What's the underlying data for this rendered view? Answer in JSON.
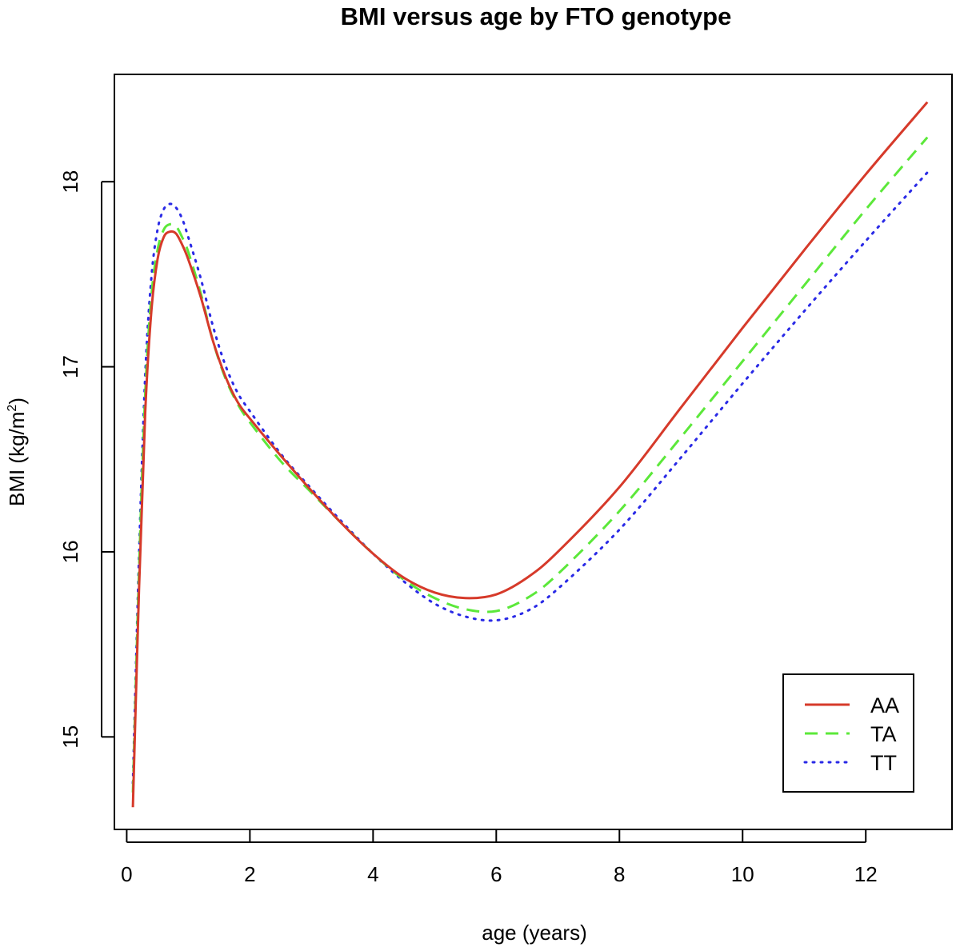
{
  "chart_data": {
    "type": "line",
    "title": "BMI versus age by FTO genotype",
    "xlabel": "age (years)",
    "ylabel": "BMI  (kg/m",
    "ylabel_superscript": "2",
    "ylabel_suffix": ")",
    "xlim": [
      -0.2,
      13.4
    ],
    "ylim": [
      14.5,
      18.58
    ],
    "xticks": [
      0,
      2,
      4,
      6,
      8,
      10,
      12
    ],
    "yticks": [
      15,
      16,
      17,
      18
    ],
    "grid": false,
    "legend_position": "bottom-right",
    "series": [
      {
        "name": "AA",
        "color": "#d63a2a",
        "dash": "solid",
        "x": [
          0.1,
          0.2,
          0.3,
          0.4,
          0.5,
          0.6,
          0.7,
          0.8,
          0.9,
          1.0,
          1.2,
          1.4,
          1.6,
          1.8,
          2.0,
          2.5,
          3.0,
          3.5,
          4.0,
          4.5,
          5.0,
          5.5,
          6.0,
          6.5,
          7.0,
          8.0,
          9.0,
          10.0,
          11.0,
          12.0,
          13.0
        ],
        "y": [
          14.62,
          15.8,
          16.75,
          17.3,
          17.58,
          17.7,
          17.73,
          17.72,
          17.66,
          17.58,
          17.38,
          17.14,
          16.95,
          16.81,
          16.72,
          16.52,
          16.33,
          16.15,
          15.99,
          15.86,
          15.78,
          15.75,
          15.77,
          15.86,
          16.0,
          16.35,
          16.78,
          17.21,
          17.63,
          18.04,
          18.43
        ]
      },
      {
        "name": "TA",
        "color": "#5ce83a",
        "dash": "dashed",
        "x": [
          0.1,
          0.2,
          0.3,
          0.4,
          0.5,
          0.6,
          0.7,
          0.8,
          0.9,
          1.0,
          1.2,
          1.4,
          1.6,
          1.8,
          2.0,
          2.5,
          3.0,
          3.5,
          4.0,
          4.5,
          5.0,
          5.5,
          6.0,
          6.5,
          7.0,
          8.0,
          9.0,
          10.0,
          11.0,
          12.0,
          13.0
        ],
        "y": [
          14.7,
          15.9,
          16.85,
          17.38,
          17.63,
          17.74,
          17.77,
          17.76,
          17.7,
          17.62,
          17.4,
          17.14,
          16.94,
          16.8,
          16.7,
          16.49,
          16.32,
          16.15,
          15.99,
          15.85,
          15.75,
          15.69,
          15.68,
          15.75,
          15.88,
          16.22,
          16.62,
          17.03,
          17.44,
          17.85,
          18.24
        ]
      },
      {
        "name": "TT",
        "color": "#2a2ae6",
        "dash": "dotted",
        "x": [
          0.1,
          0.2,
          0.3,
          0.4,
          0.5,
          0.6,
          0.7,
          0.8,
          0.9,
          1.0,
          1.2,
          1.4,
          1.6,
          1.8,
          2.0,
          2.5,
          3.0,
          3.5,
          4.0,
          4.5,
          5.0,
          5.5,
          6.0,
          6.5,
          7.0,
          8.0,
          9.0,
          10.0,
          11.0,
          12.0,
          13.0
        ],
        "y": [
          14.75,
          15.98,
          16.95,
          17.48,
          17.74,
          17.85,
          17.88,
          17.86,
          17.8,
          17.7,
          17.48,
          17.22,
          17.01,
          16.86,
          16.76,
          16.53,
          16.34,
          16.16,
          15.99,
          15.84,
          15.72,
          15.65,
          15.63,
          15.68,
          15.8,
          16.12,
          16.51,
          16.91,
          17.3,
          17.68,
          18.05
        ]
      }
    ]
  }
}
